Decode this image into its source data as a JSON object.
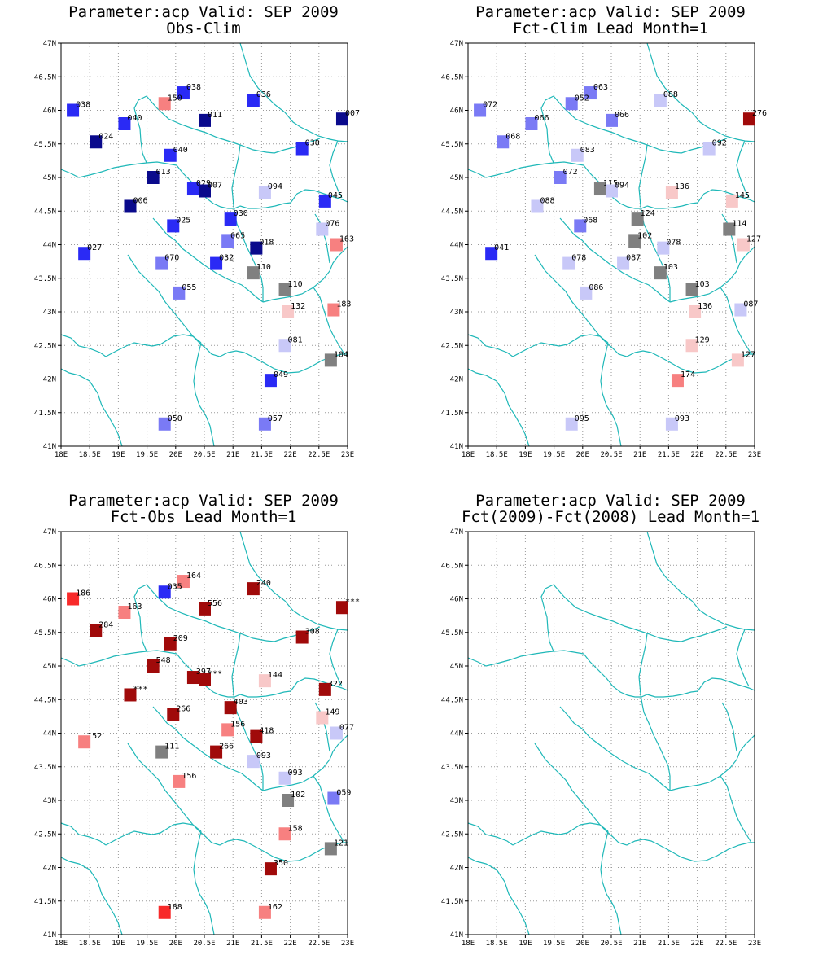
{
  "panels": [
    {
      "title": "Parameter:acp Valid: SEP 2009",
      "subtitle": "Obs-Clim",
      "chart_data": {
        "type": "scatter",
        "xlim": [
          18,
          23
        ],
        "ylim": [
          41,
          47
        ],
        "x_ticks": [
          "18E",
          "18.5E",
          "19E",
          "19.5E",
          "20E",
          "20.5E",
          "21E",
          "21.5E",
          "22E",
          "22.5E",
          "23E"
        ],
        "y_ticks": [
          "41N",
          "41.5N",
          "42N",
          "42.5N",
          "43N",
          "43.5N",
          "44N",
          "44.5N",
          "45N",
          "45.5N",
          "46N",
          "46.5N",
          "47N"
        ],
        "grid": true,
        "points": [
          {
            "lon": 18.2,
            "lat": 46.0,
            "label": "038",
            "color": "#2a2af5"
          },
          {
            "lon": 19.1,
            "lat": 45.8,
            "label": "040",
            "color": "#2a2af5"
          },
          {
            "lon": 18.6,
            "lat": 45.53,
            "label": "024",
            "color": "#0a0a8c"
          },
          {
            "lon": 20.13,
            "lat": 46.26,
            "label": "038",
            "color": "#2a2af5"
          },
          {
            "lon": 19.8,
            "lat": 46.1,
            "label": "150",
            "color": "#f78080"
          },
          {
            "lon": 20.5,
            "lat": 45.85,
            "label": "011",
            "color": "#0a0a8c"
          },
          {
            "lon": 21.35,
            "lat": 46.15,
            "label": "036",
            "color": "#2a2af5"
          },
          {
            "lon": 22.9,
            "lat": 45.87,
            "label": "007",
            "color": "#0a0a8c"
          },
          {
            "lon": 19.9,
            "lat": 45.33,
            "label": "040",
            "color": "#2a2af5"
          },
          {
            "lon": 22.2,
            "lat": 45.43,
            "label": "030",
            "color": "#2a2af5"
          },
          {
            "lon": 19.6,
            "lat": 45.0,
            "label": "013",
            "color": "#0a0a8c"
          },
          {
            "lon": 20.3,
            "lat": 44.83,
            "label": "029",
            "color": "#2a2af5"
          },
          {
            "lon": 20.5,
            "lat": 44.8,
            "label": "007",
            "color": "#0a0a8c"
          },
          {
            "lon": 21.55,
            "lat": 44.78,
            "label": "094",
            "color": "#c8c8f8"
          },
          {
            "lon": 22.6,
            "lat": 44.65,
            "label": "045",
            "color": "#2a2af5"
          },
          {
            "lon": 19.2,
            "lat": 44.57,
            "label": "006",
            "color": "#0a0a8c"
          },
          {
            "lon": 19.95,
            "lat": 44.28,
            "label": "025",
            "color": "#2a2af5"
          },
          {
            "lon": 20.95,
            "lat": 44.38,
            "label": "030",
            "color": "#2a2af5"
          },
          {
            "lon": 22.55,
            "lat": 44.23,
            "label": "076",
            "color": "#c8c8f8"
          },
          {
            "lon": 22.8,
            "lat": 44.0,
            "label": "163",
            "color": "#f78080"
          },
          {
            "lon": 18.4,
            "lat": 43.87,
            "label": "027",
            "color": "#2a2af5"
          },
          {
            "lon": 20.9,
            "lat": 44.05,
            "label": "065",
            "color": "#7a7af5"
          },
          {
            "lon": 21.4,
            "lat": 43.95,
            "label": "018",
            "color": "#0a0a8c"
          },
          {
            "lon": 19.75,
            "lat": 43.72,
            "label": "070",
            "color": "#7a7af5"
          },
          {
            "lon": 20.7,
            "lat": 43.72,
            "label": "032",
            "color": "#2a2af5"
          },
          {
            "lon": 21.35,
            "lat": 43.58,
            "label": "110",
            "color": "#808080"
          },
          {
            "lon": 20.05,
            "lat": 43.28,
            "label": "055",
            "color": "#7a7af5"
          },
          {
            "lon": 21.9,
            "lat": 43.33,
            "label": "110",
            "color": "#808080"
          },
          {
            "lon": 21.95,
            "lat": 43.0,
            "label": "132",
            "color": "#f8c8c8"
          },
          {
            "lon": 22.75,
            "lat": 43.03,
            "label": "183",
            "color": "#f78080"
          },
          {
            "lon": 21.9,
            "lat": 42.5,
            "label": "081",
            "color": "#c8c8f8"
          },
          {
            "lon": 22.7,
            "lat": 42.28,
            "label": "104",
            "color": "#808080"
          },
          {
            "lon": 21.65,
            "lat": 41.98,
            "label": "049",
            "color": "#2a2af5"
          },
          {
            "lon": 19.8,
            "lat": 41.33,
            "label": "050",
            "color": "#7a7af5"
          },
          {
            "lon": 21.55,
            "lat": 41.33,
            "label": "057",
            "color": "#7a7af5"
          }
        ]
      }
    },
    {
      "title": "Parameter:acp Valid: SEP 2009",
      "subtitle": "Fct-Clim Lead Month=1",
      "chart_data": {
        "type": "scatter",
        "xlim": [
          18,
          23
        ],
        "ylim": [
          41,
          47
        ],
        "x_ticks": [
          "18E",
          "18.5E",
          "19E",
          "19.5E",
          "20E",
          "20.5E",
          "21E",
          "21.5E",
          "22E",
          "22.5E",
          "23E"
        ],
        "y_ticks": [
          "41N",
          "41.5N",
          "42N",
          "42.5N",
          "43N",
          "43.5N",
          "44N",
          "44.5N",
          "45N",
          "45.5N",
          "46N",
          "46.5N",
          "47N"
        ],
        "grid": true,
        "points": [
          {
            "lon": 18.2,
            "lat": 46.0,
            "label": "072",
            "color": "#7a7af5"
          },
          {
            "lon": 19.1,
            "lat": 45.8,
            "label": "066",
            "color": "#7a7af5"
          },
          {
            "lon": 18.6,
            "lat": 45.53,
            "label": "068",
            "color": "#7a7af5"
          },
          {
            "lon": 20.13,
            "lat": 46.26,
            "label": "063",
            "color": "#7a7af5"
          },
          {
            "lon": 19.8,
            "lat": 46.1,
            "label": "052",
            "color": "#7a7af5"
          },
          {
            "lon": 20.5,
            "lat": 45.85,
            "label": "066",
            "color": "#7a7af5"
          },
          {
            "lon": 21.35,
            "lat": 46.15,
            "label": "088",
            "color": "#c8c8f8"
          },
          {
            "lon": 22.9,
            "lat": 45.87,
            "label": "276",
            "color": "#a00a0a"
          },
          {
            "lon": 19.9,
            "lat": 45.33,
            "label": "083",
            "color": "#c8c8f8"
          },
          {
            "lon": 22.2,
            "lat": 45.43,
            "label": "092",
            "color": "#c8c8f8"
          },
          {
            "lon": 19.6,
            "lat": 45.0,
            "label": "072",
            "color": "#7a7af5"
          },
          {
            "lon": 20.3,
            "lat": 44.83,
            "label": "115",
            "color": "#808080"
          },
          {
            "lon": 20.5,
            "lat": 44.8,
            "label": "094",
            "color": "#c8c8f8"
          },
          {
            "lon": 21.55,
            "lat": 44.78,
            "label": "136",
            "color": "#f8c8c8"
          },
          {
            "lon": 22.6,
            "lat": 44.65,
            "label": "145",
            "color": "#f8c8c8"
          },
          {
            "lon": 19.2,
            "lat": 44.57,
            "label": "088",
            "color": "#c8c8f8"
          },
          {
            "lon": 19.95,
            "lat": 44.28,
            "label": "068",
            "color": "#7a7af5"
          },
          {
            "lon": 20.95,
            "lat": 44.38,
            "label": "124",
            "color": "#808080"
          },
          {
            "lon": 22.55,
            "lat": 44.23,
            "label": "114",
            "color": "#808080"
          },
          {
            "lon": 22.8,
            "lat": 44.0,
            "label": "127",
            "color": "#f8c8c8"
          },
          {
            "lon": 18.4,
            "lat": 43.87,
            "label": "041",
            "color": "#2a2af5"
          },
          {
            "lon": 20.9,
            "lat": 44.05,
            "label": "102",
            "color": "#808080"
          },
          {
            "lon": 21.4,
            "lat": 43.95,
            "label": "078",
            "color": "#c8c8f8"
          },
          {
            "lon": 19.75,
            "lat": 43.72,
            "label": "078",
            "color": "#c8c8f8"
          },
          {
            "lon": 20.7,
            "lat": 43.72,
            "label": "087",
            "color": "#c8c8f8"
          },
          {
            "lon": 21.35,
            "lat": 43.58,
            "label": "103",
            "color": "#808080"
          },
          {
            "lon": 20.05,
            "lat": 43.28,
            "label": "086",
            "color": "#c8c8f8"
          },
          {
            "lon": 21.9,
            "lat": 43.33,
            "label": "103",
            "color": "#808080"
          },
          {
            "lon": 21.95,
            "lat": 43.0,
            "label": "136",
            "color": "#f8c8c8"
          },
          {
            "lon": 22.75,
            "lat": 43.03,
            "label": "087",
            "color": "#c8c8f8"
          },
          {
            "lon": 21.9,
            "lat": 42.5,
            "label": "129",
            "color": "#f8c8c8"
          },
          {
            "lon": 22.7,
            "lat": 42.28,
            "label": "127",
            "color": "#f8c8c8"
          },
          {
            "lon": 21.65,
            "lat": 41.98,
            "label": "174",
            "color": "#f78080"
          },
          {
            "lon": 19.8,
            "lat": 41.33,
            "label": "095",
            "color": "#c8c8f8"
          },
          {
            "lon": 21.55,
            "lat": 41.33,
            "label": "093",
            "color": "#c8c8f8"
          }
        ]
      }
    },
    {
      "title": "Parameter:acp Valid: SEP 2009",
      "subtitle": "Fct-Obs Lead Month=1",
      "chart_data": {
        "type": "scatter",
        "xlim": [
          18,
          23
        ],
        "ylim": [
          41,
          47
        ],
        "x_ticks": [
          "18E",
          "18.5E",
          "19E",
          "19.5E",
          "20E",
          "20.5E",
          "21E",
          "21.5E",
          "22E",
          "22.5E",
          "23E"
        ],
        "y_ticks": [
          "41N",
          "41.5N",
          "42N",
          "42.5N",
          "43N",
          "43.5N",
          "44N",
          "44.5N",
          "45N",
          "45.5N",
          "46N",
          "46.5N",
          "47N"
        ],
        "grid": true,
        "points": [
          {
            "lon": 18.2,
            "lat": 46.0,
            "label": "186",
            "color": "#f82a2a"
          },
          {
            "lon": 19.1,
            "lat": 45.8,
            "label": "163",
            "color": "#f78080"
          },
          {
            "lon": 18.6,
            "lat": 45.53,
            "label": "284",
            "color": "#a00a0a"
          },
          {
            "lon": 20.13,
            "lat": 46.26,
            "label": "164",
            "color": "#f78080"
          },
          {
            "lon": 19.8,
            "lat": 46.1,
            "label": "035",
            "color": "#2a2af5"
          },
          {
            "lon": 20.5,
            "lat": 45.85,
            "label": "556",
            "color": "#a00a0a"
          },
          {
            "lon": 21.35,
            "lat": 46.15,
            "label": "240",
            "color": "#a00a0a"
          },
          {
            "lon": 22.9,
            "lat": 45.87,
            "label": "***",
            "color": "#a00a0a"
          },
          {
            "lon": 19.9,
            "lat": 45.33,
            "label": "209",
            "color": "#a00a0a"
          },
          {
            "lon": 22.2,
            "lat": 45.43,
            "label": "308",
            "color": "#a00a0a"
          },
          {
            "lon": 19.6,
            "lat": 45.0,
            "label": "548",
            "color": "#a00a0a"
          },
          {
            "lon": 20.3,
            "lat": 44.83,
            "label": "397",
            "color": "#a00a0a"
          },
          {
            "lon": 20.5,
            "lat": 44.8,
            "label": "***",
            "color": "#a00a0a"
          },
          {
            "lon": 21.55,
            "lat": 44.78,
            "label": "144",
            "color": "#f8c8c8"
          },
          {
            "lon": 22.6,
            "lat": 44.65,
            "label": "322",
            "color": "#a00a0a"
          },
          {
            "lon": 19.2,
            "lat": 44.57,
            "label": "***",
            "color": "#a00a0a"
          },
          {
            "lon": 19.95,
            "lat": 44.28,
            "label": "266",
            "color": "#a00a0a"
          },
          {
            "lon": 20.95,
            "lat": 44.38,
            "label": "403",
            "color": "#a00a0a"
          },
          {
            "lon": 22.55,
            "lat": 44.23,
            "label": "149",
            "color": "#f8c8c8"
          },
          {
            "lon": 22.8,
            "lat": 44.0,
            "label": "077",
            "color": "#c8c8f8"
          },
          {
            "lon": 18.4,
            "lat": 43.87,
            "label": "152",
            "color": "#f78080"
          },
          {
            "lon": 20.9,
            "lat": 44.05,
            "label": "156",
            "color": "#f78080"
          },
          {
            "lon": 21.4,
            "lat": 43.95,
            "label": "418",
            "color": "#a00a0a"
          },
          {
            "lon": 19.75,
            "lat": 43.72,
            "label": "111",
            "color": "#808080"
          },
          {
            "lon": 20.7,
            "lat": 43.72,
            "label": "266",
            "color": "#a00a0a"
          },
          {
            "lon": 21.35,
            "lat": 43.58,
            "label": "093",
            "color": "#c8c8f8"
          },
          {
            "lon": 20.05,
            "lat": 43.28,
            "label": "156",
            "color": "#f78080"
          },
          {
            "lon": 21.9,
            "lat": 43.33,
            "label": "093",
            "color": "#c8c8f8"
          },
          {
            "lon": 21.95,
            "lat": 43.0,
            "label": "102",
            "color": "#808080"
          },
          {
            "lon": 22.75,
            "lat": 43.03,
            "label": "059",
            "color": "#7a7af5"
          },
          {
            "lon": 21.9,
            "lat": 42.5,
            "label": "158",
            "color": "#f78080"
          },
          {
            "lon": 22.7,
            "lat": 42.28,
            "label": "121",
            "color": "#808080"
          },
          {
            "lon": 21.65,
            "lat": 41.98,
            "label": "350",
            "color": "#a00a0a"
          },
          {
            "lon": 19.8,
            "lat": 41.33,
            "label": "188",
            "color": "#f82a2a"
          },
          {
            "lon": 21.55,
            "lat": 41.33,
            "label": "162",
            "color": "#f78080"
          }
        ]
      }
    },
    {
      "title": "Parameter:acp Valid: SEP 2009",
      "subtitle": "Fct(2009)-Fct(2008) Lead Month=1",
      "chart_data": {
        "type": "scatter",
        "xlim": [
          18,
          23
        ],
        "ylim": [
          41,
          47
        ],
        "x_ticks": [
          "18E",
          "18.5E",
          "19E",
          "19.5E",
          "20E",
          "20.5E",
          "21E",
          "21.5E",
          "22E",
          "22.5E",
          "23E"
        ],
        "y_ticks": [
          "41N",
          "41.5N",
          "42N",
          "42.5N",
          "43N",
          "43.5N",
          "44N",
          "44.5N",
          "45N",
          "45.5N",
          "46N",
          "46.5N",
          "47N"
        ],
        "grid": true,
        "points": []
      }
    }
  ]
}
